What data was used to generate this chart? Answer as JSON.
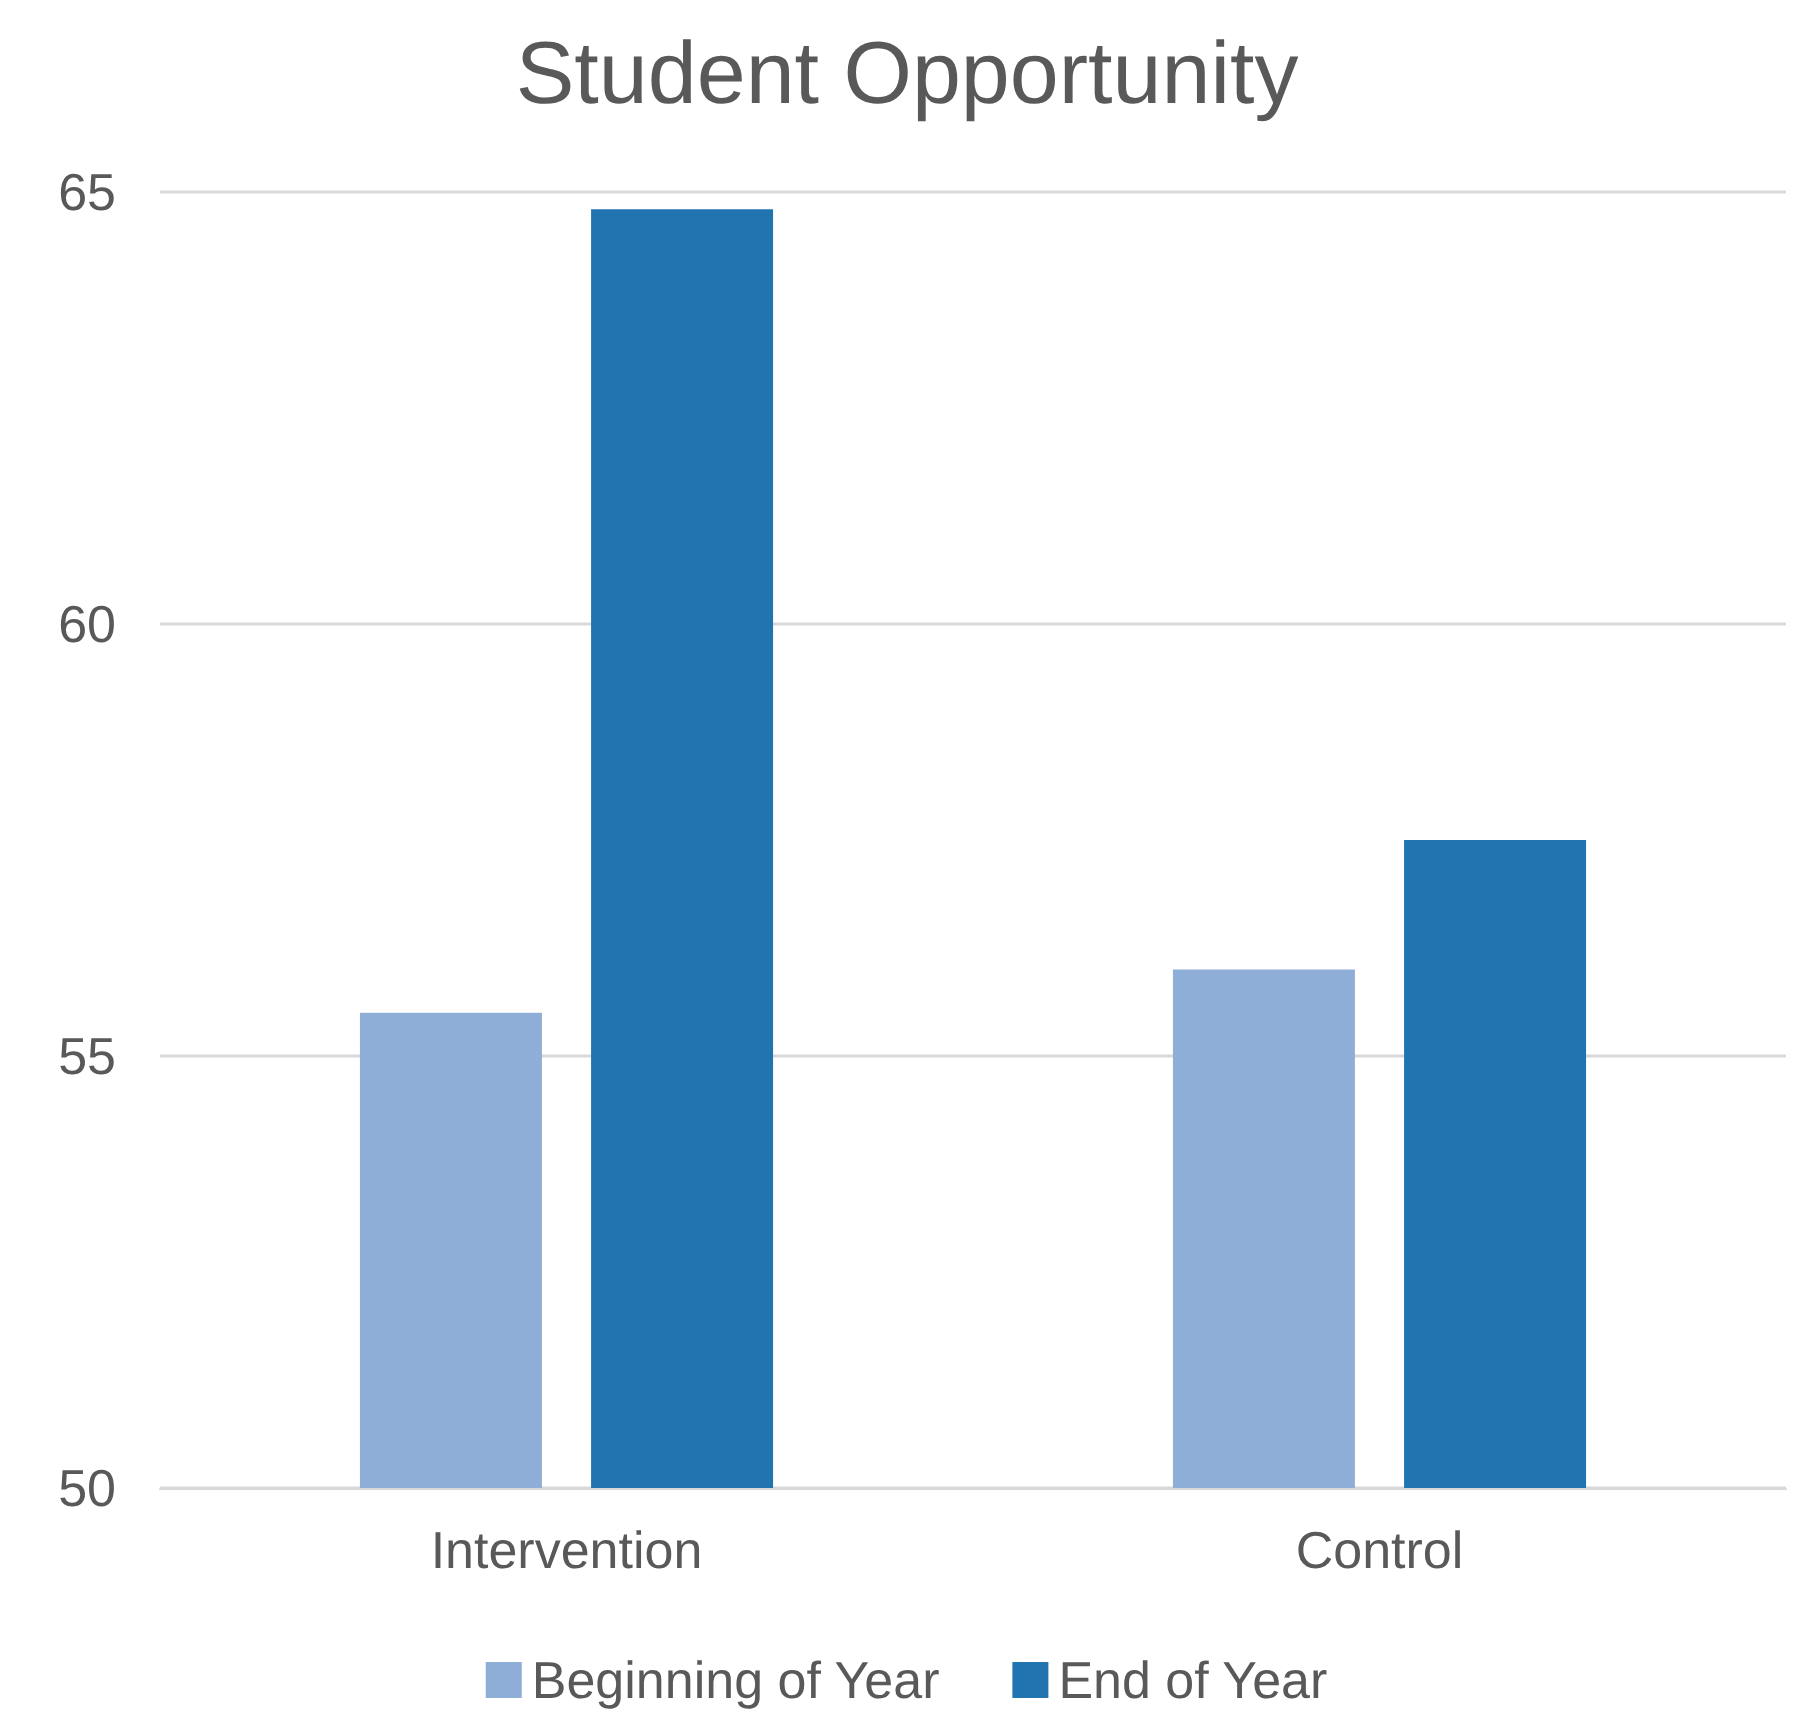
{
  "chart_data": {
    "type": "bar",
    "title": "Student Opportunity",
    "categories": [
      "Intervention",
      "Control"
    ],
    "series": [
      {
        "name": "Beginning of Year",
        "color": "#8eaed8",
        "values": [
          55.5,
          56.0
        ]
      },
      {
        "name": "End of Year",
        "color": "#2274b0",
        "values": [
          64.8,
          57.5
        ]
      }
    ],
    "ylim": [
      50,
      65
    ],
    "yticks": [
      50,
      55,
      60,
      65
    ],
    "grid": "y",
    "legend": "bottom"
  }
}
